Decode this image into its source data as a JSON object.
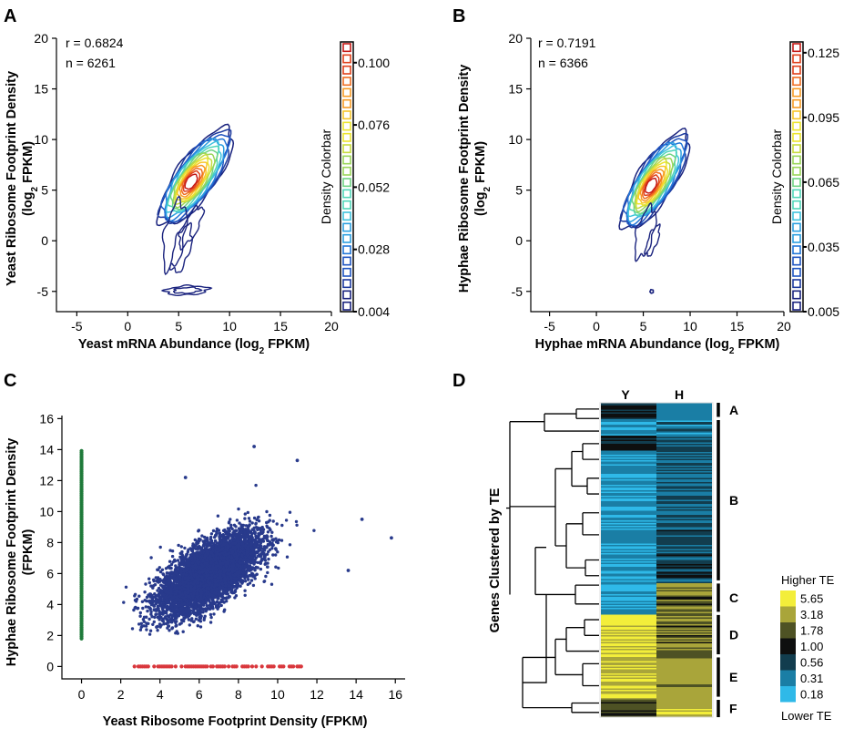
{
  "panel_labels": [
    "A",
    "B",
    "C",
    "D"
  ],
  "chart_data": [
    {
      "panel": "A",
      "type": "heatmap",
      "title": "",
      "xlabel": "Yeast mRNA Abundance (log2 FPKM)",
      "xlabel_main": "Yeast mRNA Abundance (log",
      "xlabel_sub": "2",
      "xlabel_tail": " FPKM)",
      "ylabel_line1": "Yeast Ribosome Footprint Density",
      "ylabel_line2_main": "(log",
      "ylabel_line2_sub": "2",
      "ylabel_line2_tail": " FPKM)",
      "xlim": [
        -7,
        20
      ],
      "ylim": [
        -7,
        20
      ],
      "xticks": [
        -5,
        0,
        5,
        10,
        15,
        20
      ],
      "yticks": [
        -5,
        0,
        5,
        10,
        15,
        20
      ],
      "annotations": [
        "r = 0.6824",
        "n = 6261"
      ],
      "density_peak": {
        "x": 6.2,
        "y": 5.8
      },
      "colorbar": {
        "label": "Density Colorbar",
        "ticks": [
          "0.004",
          "0.028",
          "0.052",
          "0.076",
          "0.100"
        ],
        "min": 0.004,
        "max": 0.108
      },
      "grid": false
    },
    {
      "panel": "B",
      "type": "heatmap",
      "title": "",
      "xlabel": "Hyphae mRNA Abundance (log2 FPKM)",
      "xlabel_main": "Hyphae mRNA Abundance (log",
      "xlabel_sub": "2",
      "xlabel_tail": " FPKM)",
      "ylabel_line1": "Hyphae Ribosome Footprint Density",
      "ylabel_line2_main": "(log",
      "ylabel_line2_sub": "2",
      "ylabel_line2_tail": " FPKM)",
      "xlim": [
        -7,
        20
      ],
      "ylim": [
        -7,
        20
      ],
      "xticks": [
        -5,
        0,
        5,
        10,
        15,
        20
      ],
      "yticks": [
        -5,
        0,
        5,
        10,
        15,
        20
      ],
      "annotations": [
        "r = 0.7191",
        "n = 6366"
      ],
      "density_peak": {
        "x": 5.8,
        "y": 5.4
      },
      "colorbar": {
        "label": "Density Colorbar",
        "ticks": [
          "0.005",
          "0.035",
          "0.065",
          "0.095",
          "0.125"
        ],
        "min": 0.005,
        "max": 0.13
      },
      "grid": false
    },
    {
      "panel": "C",
      "type": "scatter",
      "title": "",
      "xlabel": "Yeast Ribosome Footprint Density (FPKM)",
      "ylabel_line1": "Hyphae Ribosome Footprint Density",
      "ylabel_line2": "(FPKM)",
      "xlim": [
        -1,
        16.5
      ],
      "ylim": [
        -0.8,
        16.2
      ],
      "xticks": [
        0,
        2,
        4,
        6,
        8,
        10,
        12,
        14,
        16
      ],
      "yticks": [
        0,
        2,
        4,
        6,
        8,
        10,
        12,
        14,
        16
      ],
      "series": [
        {
          "color": "#283a8c",
          "description_center": [
            6.5,
            6.0
          ],
          "count": 6000
        },
        {
          "color": "#1f7a3a",
          "x": 0,
          "y_range": [
            1.8,
            14.0
          ]
        },
        {
          "color": "#d9373c",
          "y": 0,
          "x_range": [
            2.6,
            11.2
          ]
        }
      ],
      "outliers": [
        [
          15.8,
          8.3
        ],
        [
          13.6,
          6.2
        ],
        [
          14.3,
          9.5
        ],
        [
          8.8,
          14.2
        ],
        [
          11.0,
          13.3
        ],
        [
          5.3,
          12.2
        ]
      ],
      "grid": false
    },
    {
      "panel": "D",
      "type": "heatmap",
      "ylabel": "Genes Clustered by TE",
      "columns": [
        "Y",
        "H"
      ],
      "clusters": [
        {
          "label": "A",
          "start": 0.0,
          "end": 0.045
        },
        {
          "label": "B",
          "start": 0.055,
          "end": 0.565
        },
        {
          "label": "C",
          "start": 0.575,
          "end": 0.665
        },
        {
          "label": "D",
          "start": 0.675,
          "end": 0.8
        },
        {
          "label": "E",
          "start": 0.81,
          "end": 0.935
        },
        {
          "label": "F",
          "start": 0.945,
          "end": 1.0
        }
      ],
      "legend": {
        "top_label": "Higher TE",
        "bottom_label": "Lower TE",
        "entries": [
          {
            "value": "5.65",
            "color": "#f3ee3a"
          },
          {
            "value": "3.18",
            "color": "#a9a53a"
          },
          {
            "value": "1.78",
            "color": "#4e5224"
          },
          {
            "value": "1.00",
            "color": "#0e0f0f"
          },
          {
            "value": "0.56",
            "color": "#123d4e"
          },
          {
            "value": "0.31",
            "color": "#1a7ea5"
          },
          {
            "value": "0.18",
            "color": "#2fb9e8"
          }
        ]
      }
    }
  ]
}
